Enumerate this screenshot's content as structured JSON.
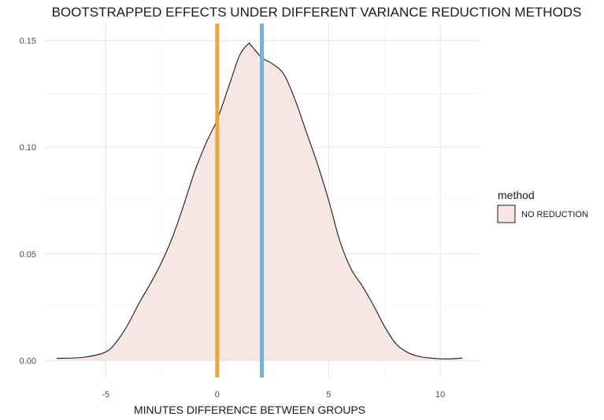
{
  "chart_data": {
    "type": "area",
    "title": "BOOTSTRAPPED EFFECTS UNDER DIFFERENT VARIANCE REDUCTION METHODS",
    "xlabel": "MINUTES DIFFERENCE BETWEEN GROUPS",
    "ylabel": "",
    "xlim": [
      -7.8,
      11.8
    ],
    "ylim": [
      -0.008,
      0.158
    ],
    "x_ticks": [
      -5,
      0,
      5,
      10
    ],
    "x_tick_labels": [
      "-5",
      "0",
      "5",
      "10"
    ],
    "y_ticks": [
      0.0,
      0.05,
      0.1,
      0.15
    ],
    "y_tick_labels": [
      "0.00",
      "0.05",
      "0.10",
      "0.15"
    ],
    "grid": true,
    "legend": {
      "title": "method",
      "position": "right"
    },
    "series": [
      {
        "name": "NO REDUCTION",
        "fill_color": "#f8e6e2",
        "line_color": "#1a1a1a",
        "x": [
          -7.2,
          -6.0,
          -5.0,
          -4.5,
          -4.0,
          -3.5,
          -3.0,
          -2.5,
          -2.0,
          -1.5,
          -1.0,
          -0.5,
          0.0,
          0.5,
          1.0,
          1.4,
          1.5,
          2.0,
          2.5,
          3.0,
          3.5,
          4.0,
          4.5,
          5.0,
          5.5,
          6.0,
          6.5,
          7.0,
          7.5,
          8.0,
          8.5,
          9.0,
          9.5,
          10.0,
          10.5,
          11.0
        ],
        "y": [
          0.001,
          0.0015,
          0.004,
          0.009,
          0.017,
          0.027,
          0.036,
          0.046,
          0.058,
          0.073,
          0.089,
          0.102,
          0.113,
          0.128,
          0.143,
          0.1485,
          0.148,
          0.142,
          0.139,
          0.134,
          0.122,
          0.107,
          0.092,
          0.075,
          0.056,
          0.043,
          0.035,
          0.026,
          0.016,
          0.008,
          0.004,
          0.002,
          0.0012,
          0.0008,
          0.0008,
          0.0012
        ]
      }
    ],
    "vlines": [
      {
        "x": 0.0,
        "color": "#e8a838"
      },
      {
        "x": 2.0,
        "color": "#7aaedb"
      }
    ],
    "colors": {
      "grid_major": "#e5e5e5",
      "grid_minor": "#f2f2f2",
      "tick_text": "#4d4d4d"
    }
  }
}
